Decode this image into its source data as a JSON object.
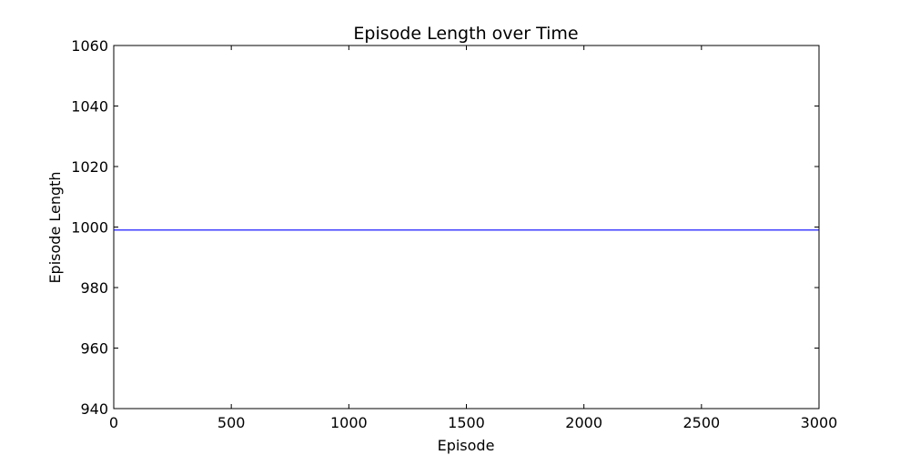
{
  "chart_data": {
    "type": "line",
    "title": "Episode Length over Time",
    "xlabel": "Episode",
    "ylabel": "Episode Length",
    "xlim": [
      0,
      3000
    ],
    "ylim": [
      940,
      1060
    ],
    "xticks": [
      0,
      500,
      1000,
      1500,
      2000,
      2500,
      3000
    ],
    "xtick_labels": [
      "0",
      "500",
      "1000",
      "1500",
      "2000",
      "2500",
      "3000"
    ],
    "yticks": [
      940,
      960,
      980,
      1000,
      1020,
      1040,
      1060
    ],
    "ytick_labels": [
      "940",
      "960",
      "980",
      "1000",
      "1020",
      "1040",
      "1060"
    ],
    "grid": false,
    "series": [
      {
        "color": "#0000ff",
        "x": [
          0,
          3000
        ],
        "y": [
          999,
          999
        ]
      }
    ]
  }
}
